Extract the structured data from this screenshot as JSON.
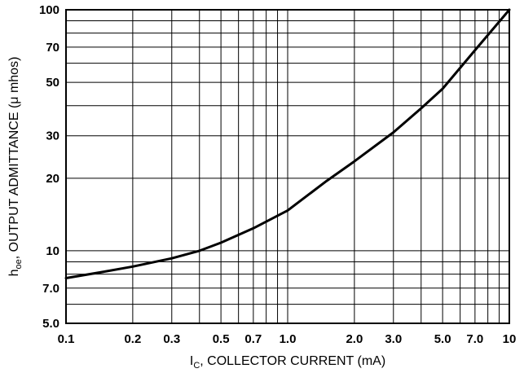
{
  "chart_data": {
    "type": "line",
    "title": "",
    "xscale": "log",
    "yscale": "log",
    "xlim": [
      0.1,
      10
    ],
    "ylim": [
      5.0,
      100
    ],
    "grid": true,
    "x_gridlines": [
      0.1,
      0.2,
      0.3,
      0.4,
      0.5,
      0.6,
      0.7,
      0.8,
      0.9,
      1.0,
      2.0,
      3.0,
      4.0,
      5.0,
      6.0,
      7.0,
      8.0,
      9.0,
      10
    ],
    "y_gridlines": [
      5,
      6,
      7,
      8,
      9,
      10,
      20,
      30,
      40,
      50,
      60,
      70,
      80,
      90,
      100
    ],
    "x_ticks": [
      {
        "v": 0.1,
        "label": "0.1"
      },
      {
        "v": 0.2,
        "label": "0.2"
      },
      {
        "v": 0.3,
        "label": "0.3"
      },
      {
        "v": 0.5,
        "label": "0.5"
      },
      {
        "v": 0.7,
        "label": "0.7"
      },
      {
        "v": 1.0,
        "label": "1.0"
      },
      {
        "v": 2.0,
        "label": "2.0"
      },
      {
        "v": 3.0,
        "label": "3.0"
      },
      {
        "v": 5.0,
        "label": "5.0"
      },
      {
        "v": 7.0,
        "label": "7.0"
      },
      {
        "v": 10,
        "label": "10"
      }
    ],
    "y_ticks": [
      {
        "v": 5,
        "label": "5.0"
      },
      {
        "v": 7,
        "label": "7.0"
      },
      {
        "v": 10,
        "label": "10"
      },
      {
        "v": 20,
        "label": "20"
      },
      {
        "v": 30,
        "label": "30"
      },
      {
        "v": 50,
        "label": "50"
      },
      {
        "v": 70,
        "label": "70"
      },
      {
        "v": 100,
        "label": "100"
      }
    ],
    "xlabel": {
      "main": "I",
      "sub": "C",
      "rest": ", COLLECTOR CURRENT (mA)"
    },
    "ylabel": {
      "main": "h",
      "sub": "oe",
      "rest": ", OUTPUT ADMITTANCE (μ mhos)"
    },
    "series": [
      {
        "x": [
          0.1,
          0.15,
          0.2,
          0.3,
          0.4,
          0.5,
          0.7,
          1.0,
          1.5,
          2.0,
          3.0,
          4.0,
          5.0,
          7.0,
          10
        ],
        "y": [
          7.7,
          8.2,
          8.6,
          9.3,
          10.0,
          10.8,
          12.4,
          14.7,
          19.5,
          23.5,
          31.0,
          39.0,
          47.0,
          68.0,
          100
        ]
      }
    ]
  }
}
